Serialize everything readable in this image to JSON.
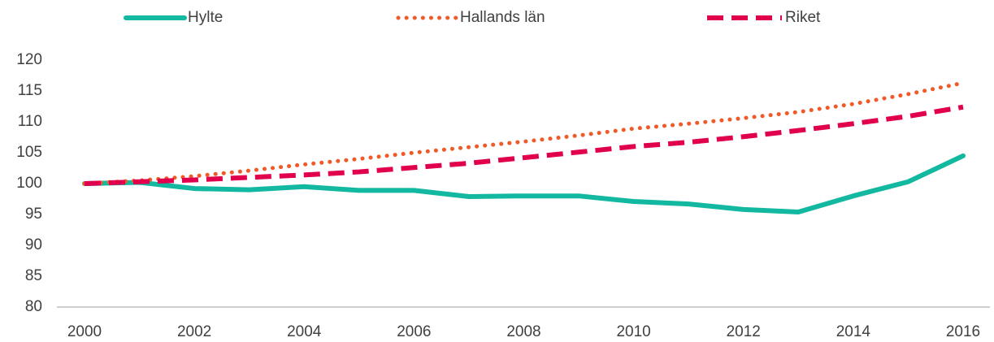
{
  "chart_data": {
    "type": "line",
    "x": [
      2000,
      2001,
      2002,
      2003,
      2004,
      2005,
      2006,
      2007,
      2008,
      2009,
      2010,
      2011,
      2012,
      2013,
      2014,
      2015,
      2016
    ],
    "series": [
      {
        "name": "Hylte",
        "color": "#13b8a0",
        "style": "solid",
        "values": [
          100,
          100.2,
          99.2,
          99.0,
          99.5,
          98.9,
          98.9,
          97.9,
          98.0,
          98.0,
          97.1,
          96.7,
          95.8,
          95.4,
          98.0,
          100.3,
          104.5
        ]
      },
      {
        "name": "Hallands län",
        "color": "#f05a28",
        "style": "dotted",
        "values": [
          100,
          100.5,
          101.2,
          102.1,
          103.1,
          104.0,
          105.0,
          105.9,
          106.8,
          107.8,
          108.9,
          109.7,
          110.6,
          111.6,
          112.9,
          114.5,
          116.3
        ]
      },
      {
        "name": "Riket",
        "color": "#e0004d",
        "style": "dashed",
        "values": [
          100,
          100.3,
          100.6,
          101.0,
          101.4,
          101.9,
          102.6,
          103.3,
          104.2,
          105.1,
          106.0,
          106.7,
          107.6,
          108.6,
          109.7,
          110.9,
          112.4
        ]
      }
    ],
    "xlim": [
      2000,
      2016
    ],
    "xticks": [
      2000,
      2002,
      2004,
      2006,
      2008,
      2010,
      2012,
      2014,
      2016
    ],
    "ylim": [
      80,
      120
    ],
    "yticks": [
      80,
      85,
      90,
      95,
      100,
      105,
      110,
      115,
      120
    ],
    "grid": false,
    "legend": "top"
  }
}
